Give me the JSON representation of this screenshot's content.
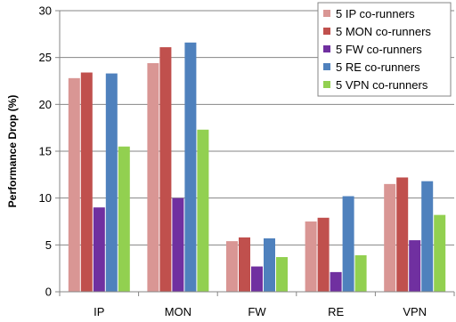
{
  "chart_data": {
    "type": "bar",
    "title": "",
    "xlabel": "",
    "ylabel": "Performance Drop (%)",
    "ylim": [
      0,
      30
    ],
    "yticks": [
      0,
      5,
      10,
      15,
      20,
      25,
      30
    ],
    "grid": true,
    "legend_position": "top-right",
    "categories": [
      "IP",
      "MON",
      "FW",
      "RE",
      "VPN"
    ],
    "series": [
      {
        "name": "5 IP co-runners",
        "color": "#d99694",
        "values": [
          22.8,
          24.4,
          5.4,
          7.5,
          11.5
        ]
      },
      {
        "name": "5 MON co-runners",
        "color": "#c0504d",
        "values": [
          23.4,
          26.1,
          5.8,
          7.9,
          12.2
        ]
      },
      {
        "name": "5 FW co-runners",
        "color": "#7030a0",
        "values": [
          9.0,
          10.0,
          2.7,
          2.1,
          5.5
        ]
      },
      {
        "name": "5 RE co-runners",
        "color": "#4f81bd",
        "values": [
          23.3,
          26.6,
          5.7,
          10.2,
          11.8
        ]
      },
      {
        "name": "5 VPN co-runners",
        "color": "#92d050",
        "values": [
          15.5,
          17.3,
          3.7,
          3.9,
          8.2
        ]
      }
    ]
  }
}
